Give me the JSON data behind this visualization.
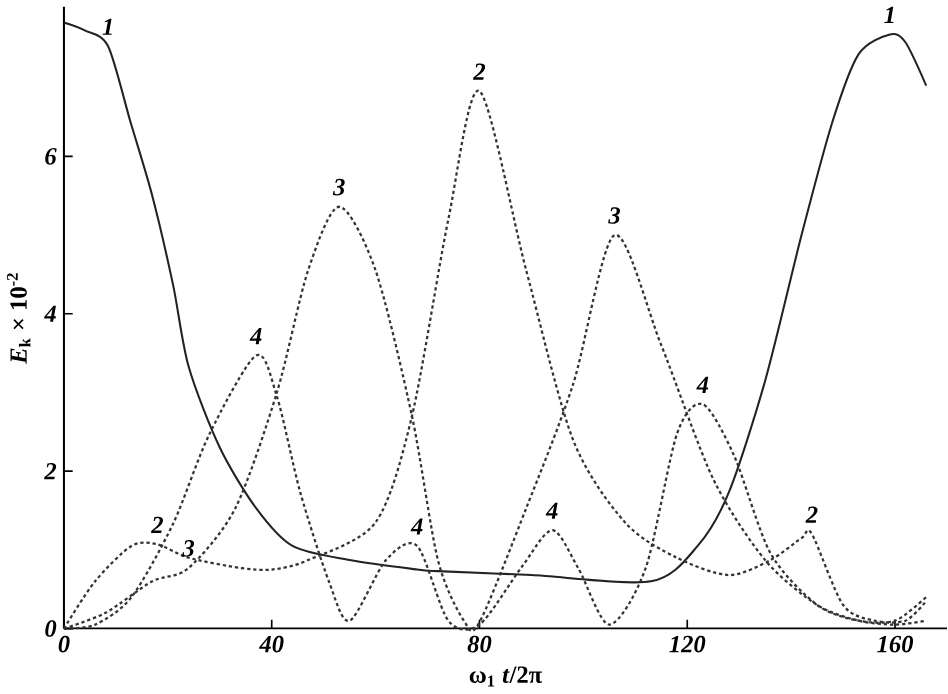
{
  "chart_data": {
    "type": "line",
    "xlabel": "ω$_{1}$ *t*/2π",
    "ylabel": "*E*$_{k}$ × 10$^{-2}$",
    "xlim": [
      0,
      170
    ],
    "ylim": [
      0,
      7.9
    ],
    "xticks": [
      0,
      40,
      80,
      120,
      160
    ],
    "yticks": [
      0,
      2,
      4,
      6
    ],
    "grid": false,
    "marker": "none",
    "series": [
      {
        "color": "#222222",
        "line_style": "solid",
        "x": [
          0,
          4,
          8.5,
          12.8,
          17,
          21,
          24,
          30,
          37,
          44,
          55,
          68,
          72,
          90,
          113,
          122,
          128,
          135,
          142,
          148,
          153,
          159,
          162,
          166
        ],
        "values": [
          7.7,
          7.6,
          7.4,
          6.44,
          5.5,
          4.37,
          3.33,
          2.3,
          1.53,
          1.05,
          0.87,
          0.75,
          0.73,
          0.68,
          0.6,
          1.05,
          1.73,
          3.15,
          5.0,
          6.45,
          7.3,
          7.55,
          7.45,
          6.9
        ]
      },
      {
        "color": "#333333",
        "line_style": "dotted",
        "x": [
          0,
          6,
          13,
          18,
          24,
          34,
          40,
          47,
          60,
          67,
          74,
          80,
          89,
          98,
          108,
          118,
          128,
          136,
          142,
          144,
          150,
          156,
          162,
          166
        ],
        "values": [
          0,
          0.6,
          1.05,
          1.07,
          0.9,
          0.77,
          0.75,
          0.87,
          1.35,
          2.7,
          5.2,
          6.83,
          4.55,
          2.4,
          1.35,
          0.9,
          0.68,
          0.87,
          1.15,
          1.2,
          0.3,
          0.1,
          0.1,
          0.35
        ]
      },
      {
        "color": "#333333",
        "line_style": "dotted",
        "x": [
          0,
          8,
          17,
          24,
          33,
          41,
          47,
          53,
          60,
          67,
          72,
          77,
          80,
          89,
          98,
          106,
          115,
          125,
          135,
          145,
          153,
          160,
          166
        ],
        "values": [
          0,
          0.2,
          0.6,
          0.77,
          1.53,
          3.0,
          4.55,
          5.36,
          4.55,
          2.7,
          0.87,
          0.1,
          0.08,
          1.53,
          3.1,
          5.0,
          3.6,
          1.9,
          0.87,
          0.3,
          0.1,
          0.05,
          0.1
        ]
      },
      {
        "color": "#333333",
        "line_style": "dotted",
        "x": [
          0,
          6,
          13,
          21,
          28,
          37,
          41,
          45.5,
          51,
          55,
          62,
          68,
          74,
          80,
          88,
          94,
          99,
          105,
          112,
          118,
          123,
          129,
          136,
          145,
          153,
          160,
          166
        ],
        "values": [
          0,
          0.05,
          0.4,
          1.33,
          2.47,
          3.47,
          2.95,
          1.73,
          0.6,
          0.1,
          0.87,
          1.05,
          0.1,
          0.05,
          0.77,
          1.25,
          0.77,
          0.05,
          0.77,
          2.47,
          2.85,
          2.2,
          0.96,
          0.3,
          0.1,
          0.1,
          0.4
        ]
      }
    ],
    "annotations": [
      {
        "text": "1",
        "x": 8.5,
        "y": 7.4
      },
      {
        "text": "1",
        "x": 159,
        "y": 7.55
      },
      {
        "text": "2",
        "x": 80,
        "y": 6.83
      },
      {
        "text": "2",
        "x": 18,
        "y": 1.07
      },
      {
        "text": "2",
        "x": 144,
        "y": 1.2
      },
      {
        "text": "3",
        "x": 53,
        "y": 5.36
      },
      {
        "text": "3",
        "x": 106,
        "y": 5.0
      },
      {
        "text": "3",
        "x": 24,
        "y": 0.77
      },
      {
        "text": "4",
        "x": 37,
        "y": 3.47
      },
      {
        "text": "4",
        "x": 68,
        "y": 1.05
      },
      {
        "text": "4",
        "x": 94,
        "y": 1.25
      },
      {
        "text": "4",
        "x": 123,
        "y": 2.85
      }
    ]
  }
}
